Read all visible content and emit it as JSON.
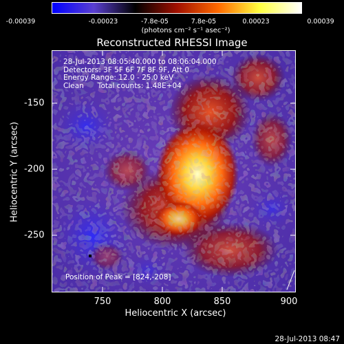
{
  "colorbar": {
    "tick_labels": [
      "-0.00039",
      "-0.00023",
      "-7.8e-05",
      "7.8e-05",
      "0.00023",
      "0.00039"
    ],
    "unit_label": "(photons cm⁻² s⁻¹ asec⁻²)",
    "colors": [
      "#0000ff",
      "#5a3fd0",
      "#000000",
      "#a01000",
      "#ff6a00",
      "#ffff40",
      "#ffffff"
    ]
  },
  "plot": {
    "title": "Reconstructed RHESSI Image",
    "info_lines": [
      "28-Jul-2013 08:05:40.000 to 08:06:04.000",
      "Detectors: 3F 5F 6F 7F 8F 9F, Att 0",
      "Energy Range: 12.0 - 25.0 keV",
      "Clean      Total counts: 1.48E+04"
    ],
    "peak_label": "Position of Peak = [824,-208]",
    "x_axis_label": "Heliocentric X (arcsec)",
    "y_axis_label": "Heliocentric Y (arcsec)",
    "x_ticks": [
      "750",
      "800",
      "850",
      "900"
    ],
    "y_ticks": [
      "-150",
      "-200",
      "-250"
    ]
  },
  "footer": {
    "timestamp": "28-Jul-2013 08:47"
  }
}
